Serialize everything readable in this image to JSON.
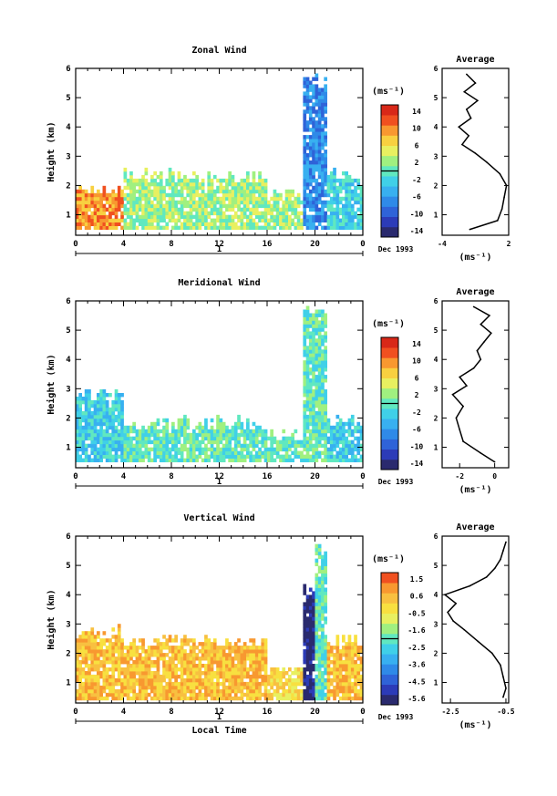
{
  "chart_data": [
    {
      "type": "heatmap",
      "title": "Zonal Wind",
      "xlabel": "",
      "ylabel": "Height (km)",
      "x_ticks": [
        "0",
        "4",
        "8",
        "12",
        "16",
        "20",
        "0"
      ],
      "y_ticks": [
        "1",
        "2",
        "3",
        "4",
        "5",
        "6"
      ],
      "ylim": [
        0.3,
        6
      ],
      "date_label": "Dec 1993",
      "day_label": "1",
      "colorbar": {
        "unit": "(ms⁻¹)",
        "ticks": [
          "14",
          "10",
          "6",
          "2",
          "-2",
          "-6",
          "-10",
          "-14"
        ],
        "colors": [
          "#2a2a6e",
          "#2c3bb8",
          "#2f63d8",
          "#2f8ae8",
          "#38b0f0",
          "#40d0e8",
          "#60e8c0",
          "#a0f080",
          "#e8f060",
          "#f8d040",
          "#f89830",
          "#f05020",
          "#d82818"
        ]
      },
      "regions": [
        {
          "x": [
            0,
            4
          ],
          "y": [
            0.5,
            2.1
          ],
          "level": 10
        },
        {
          "x": [
            4,
            16
          ],
          "y": [
            0.5,
            2.5
          ],
          "level": 7
        },
        {
          "x": [
            16,
            19
          ],
          "y": [
            0.5,
            1.8
          ],
          "level": 7
        },
        {
          "x": [
            19,
            21
          ],
          "y": [
            0.5,
            5.8
          ],
          "level": 3
        },
        {
          "x": [
            21,
            24
          ],
          "y": [
            0.5,
            2.5
          ],
          "level": 5
        }
      ],
      "average": {
        "title": "Average",
        "xlabel": "(ms⁻¹)",
        "x_ticks": [
          "-4",
          "2"
        ],
        "xlim": [
          -4,
          2
        ],
        "y": [
          0.5,
          0.8,
          1.2,
          1.6,
          2.0,
          2.4,
          2.8,
          3.1,
          3.4,
          3.7,
          4.0,
          4.3,
          4.6,
          4.9,
          5.2,
          5.5,
          5.8
        ],
        "x": [
          -1.5,
          1.0,
          1.4,
          1.6,
          1.8,
          1.2,
          0.0,
          -1.0,
          -2.2,
          -1.6,
          -2.5,
          -1.4,
          -1.8,
          -0.8,
          -2.0,
          -1.0,
          -1.8
        ]
      }
    },
    {
      "type": "heatmap",
      "title": "Meridional Wind",
      "xlabel": "",
      "ylabel": "Height (km)",
      "x_ticks": [
        "0",
        "4",
        "8",
        "12",
        "16",
        "20",
        "0"
      ],
      "y_ticks": [
        "1",
        "2",
        "3",
        "4",
        "5",
        "6"
      ],
      "ylim": [
        0.3,
        6
      ],
      "date_label": "Dec 1993",
      "day_label": "1",
      "colorbar": {
        "unit": "(ms⁻¹)",
        "ticks": [
          "14",
          "10",
          "6",
          "2",
          "-2",
          "-6",
          "-10",
          "-14"
        ],
        "colors": [
          "#2a2a6e",
          "#2c3bb8",
          "#2f63d8",
          "#2f8ae8",
          "#38b0f0",
          "#40d0e8",
          "#60e8c0",
          "#a0f080",
          "#e8f060",
          "#f8d040",
          "#f89830",
          "#f05020",
          "#d82818"
        ]
      },
      "regions": [
        {
          "x": [
            0,
            4
          ],
          "y": [
            0.5,
            3.0
          ],
          "level": 5
        },
        {
          "x": [
            4,
            16
          ],
          "y": [
            0.5,
            2.0
          ],
          "level": 6
        },
        {
          "x": [
            16,
            19
          ],
          "y": [
            0.5,
            1.6
          ],
          "level": 6
        },
        {
          "x": [
            19,
            21
          ],
          "y": [
            0.5,
            5.8
          ],
          "level": 6
        },
        {
          "x": [
            21,
            24
          ],
          "y": [
            0.5,
            2.2
          ],
          "level": 5
        }
      ],
      "average": {
        "title": "Average",
        "xlabel": "(ms⁻¹)",
        "x_ticks": [
          "-2",
          "0"
        ],
        "xlim": [
          -3,
          0.8
        ],
        "y": [
          0.5,
          0.8,
          1.2,
          1.6,
          2.0,
          2.4,
          2.8,
          3.1,
          3.4,
          3.7,
          4.0,
          4.3,
          4.6,
          4.9,
          5.2,
          5.5,
          5.8
        ],
        "x": [
          0.0,
          -0.8,
          -1.8,
          -2.0,
          -2.2,
          -1.8,
          -2.4,
          -1.6,
          -2.0,
          -1.2,
          -0.8,
          -1.0,
          -0.6,
          -0.2,
          -0.8,
          -0.3,
          -1.2
        ]
      }
    },
    {
      "type": "heatmap",
      "title": "Vertical Wind",
      "xlabel": "Local Time",
      "ylabel": "Height (km)",
      "x_ticks": [
        "0",
        "4",
        "8",
        "12",
        "16",
        "20",
        "0"
      ],
      "y_ticks": [
        "1",
        "2",
        "3",
        "4",
        "5",
        "6"
      ],
      "ylim": [
        0.3,
        6
      ],
      "date_label": "Dec 1993",
      "day_label": "1",
      "colorbar": {
        "unit": "(ms⁻¹)",
        "ticks": [
          "1.5",
          "0.6",
          "-0.5",
          "-1.6",
          "-2.5",
          "-3.6",
          "-4.5",
          "-5.6"
        ],
        "colors": [
          "#2a2a6e",
          "#2c3bb8",
          "#2f63d8",
          "#2f8ae8",
          "#38b0f0",
          "#40d0e8",
          "#60e8c0",
          "#a0f080",
          "#e8f060",
          "#f8e040",
          "#f8c040",
          "#f89830",
          "#f05020"
        ]
      },
      "regions": [
        {
          "x": [
            0,
            4
          ],
          "y": [
            0.4,
            2.9
          ],
          "level": 10
        },
        {
          "x": [
            4,
            16
          ],
          "y": [
            0.4,
            2.6
          ],
          "level": 10
        },
        {
          "x": [
            16,
            19
          ],
          "y": [
            0.4,
            1.6
          ],
          "level": 9
        },
        {
          "x": [
            19,
            20
          ],
          "y": [
            0.4,
            4.3
          ],
          "level": 0
        },
        {
          "x": [
            20,
            21
          ],
          "y": [
            0.4,
            5.9
          ],
          "level": 6
        },
        {
          "x": [
            21,
            24
          ],
          "y": [
            0.4,
            2.6
          ],
          "level": 10
        }
      ],
      "average": {
        "title": "Average",
        "xlabel": "(ms⁻¹)",
        "x_ticks": [
          "-2.5",
          "-0.5"
        ],
        "xlim": [
          -2.8,
          -0.4
        ],
        "y": [
          0.5,
          0.8,
          1.2,
          1.6,
          2.0,
          2.4,
          2.8,
          3.1,
          3.4,
          3.7,
          4.0,
          4.3,
          4.6,
          4.9,
          5.2,
          5.5,
          5.8
        ],
        "x": [
          -0.6,
          -0.5,
          -0.6,
          -0.7,
          -1.0,
          -1.5,
          -2.0,
          -2.4,
          -2.6,
          -2.3,
          -2.7,
          -1.8,
          -1.2,
          -0.9,
          -0.7,
          -0.6,
          -0.5
        ]
      }
    }
  ]
}
